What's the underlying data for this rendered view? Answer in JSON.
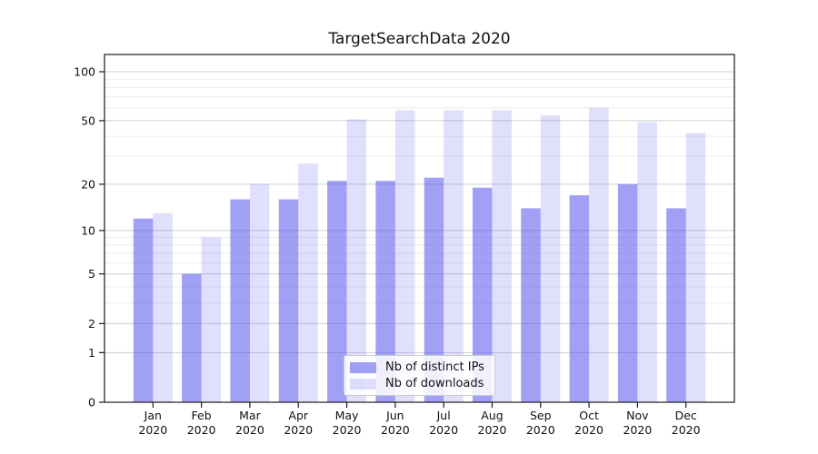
{
  "title": "TargetSearchData 2020",
  "legend": {
    "items": [
      {
        "label": "Nb of distinct IPs",
        "color": "rgba(82,82,237,0.55)"
      },
      {
        "label": "Nb of downloads",
        "color": "rgba(82,82,237,0.18)"
      }
    ]
  },
  "chart_data": {
    "type": "bar",
    "title": "TargetSearchData 2020",
    "categories": [
      "Jan 2020",
      "Feb 2020",
      "Mar 2020",
      "Apr 2020",
      "May 2020",
      "Jun 2020",
      "Jul 2020",
      "Aug 2020",
      "Sep 2020",
      "Oct 2020",
      "Nov 2020",
      "Dec 2020"
    ],
    "x_tick_line1": [
      "Jan",
      "Feb",
      "Mar",
      "Apr",
      "May",
      "Jun",
      "Jul",
      "Aug",
      "Sep",
      "Oct",
      "Nov",
      "Dec"
    ],
    "x_tick_line2": [
      "2020",
      "2020",
      "2020",
      "2020",
      "2020",
      "2020",
      "2020",
      "2020",
      "2020",
      "2020",
      "2020",
      "2020"
    ],
    "series": [
      {
        "name": "Nb of distinct IPs",
        "color": "rgba(82,82,237,0.55)",
        "values": [
          12,
          5,
          16,
          16,
          21,
          21,
          22,
          19,
          14,
          17,
          20,
          14
        ]
      },
      {
        "name": "Nb of downloads",
        "color": "rgba(82,82,237,0.18)",
        "values": [
          13,
          9,
          20,
          27,
          51,
          58,
          58,
          58,
          54,
          60,
          49,
          42
        ]
      }
    ],
    "xlabel": "",
    "ylabel": "",
    "yscale": "symlog-log1p",
    "ylim": [
      0,
      125
    ],
    "y_major_ticks": [
      0,
      1,
      2,
      5,
      10,
      20,
      50,
      100
    ],
    "y_tick_labels_top_to_bottom": [
      "100",
      "50",
      "20",
      "10",
      "5",
      "2",
      "1",
      "0"
    ],
    "y_minor_gridlines": [
      3,
      4,
      6,
      7,
      8,
      9,
      30,
      40,
      60,
      70,
      80,
      90
    ],
    "grid": "on",
    "legend_position": "bottom-center-inside"
  },
  "colors": {
    "bar_base": "#5252ed",
    "major_gridline": "#cfcfcf",
    "minor_gridline": "#ececec",
    "spine": "#1a1a1a",
    "text": "#111111"
  }
}
